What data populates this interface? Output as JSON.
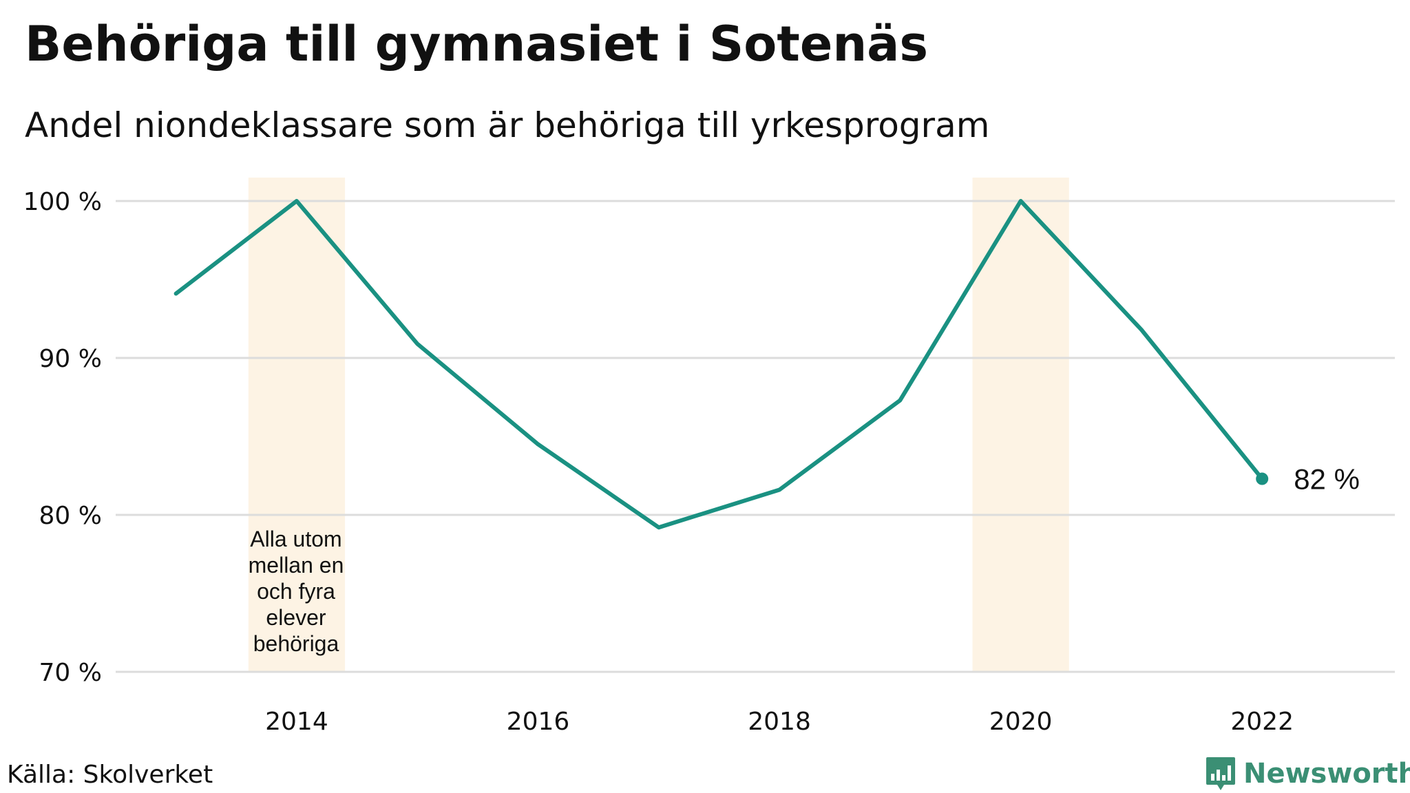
{
  "header": {
    "title": "Behöriga till gymnasiet i Sotenäs",
    "subtitle": "Andel niondeklassare som är behöriga till yrkesprogram"
  },
  "footer": {
    "source": "Källa: Skolverket",
    "brand": "Newsworthy"
  },
  "colors": {
    "line": "#1a9182",
    "highlight": "#fdf3e4",
    "grid": "#dcdcdc",
    "brand": "#3b8f74"
  },
  "chart_data": {
    "type": "line",
    "x": [
      2013,
      2014,
      2015,
      2016,
      2017,
      2018,
      2019,
      2020,
      2021,
      2022
    ],
    "series": [
      {
        "values": [
          94.1,
          100,
          90.9,
          84.5,
          79.2,
          81.6,
          87.3,
          100,
          91.8,
          82.3
        ]
      }
    ],
    "ylim": [
      70,
      100
    ],
    "xlim": [
      2012.5,
      2023.1
    ],
    "yticks": [
      70,
      80,
      90,
      100
    ],
    "ytick_labels": [
      "70 %",
      "80 %",
      "90 %",
      "100 %"
    ],
    "xticks": [
      2014,
      2016,
      2018,
      2020,
      2022
    ],
    "xtick_labels": [
      "2014",
      "2016",
      "2018",
      "2020",
      "2022"
    ],
    "highlights": [
      {
        "year": 2014,
        "note": "Alla utom mellan en och fyra elever behöriga"
      },
      {
        "year": 2020
      }
    ],
    "end_label": "82  %",
    "grid": true,
    "legend": "none"
  }
}
